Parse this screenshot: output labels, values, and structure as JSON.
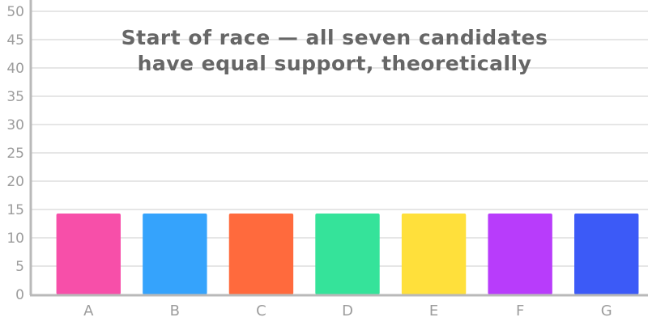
{
  "chart_data": {
    "type": "bar",
    "title_lines": [
      "Start of race — all seven candidates",
      "have equal support, theoretically"
    ],
    "categories": [
      "A",
      "B",
      "C",
      "D",
      "E",
      "F",
      "G"
    ],
    "values": [
      14.29,
      14.29,
      14.29,
      14.29,
      14.29,
      14.29,
      14.29
    ],
    "colors": [
      "#f74fa9",
      "#35a3fc",
      "#ff6a3d",
      "#35e39a",
      "#ffe03b",
      "#b83cfb",
      "#3c5af7"
    ],
    "ylim": [
      0,
      52
    ],
    "yticks": [
      0,
      5,
      10,
      15,
      20,
      25,
      30,
      35,
      40,
      45,
      50
    ],
    "xlabel": "",
    "ylabel": "",
    "grid": true,
    "legend": "none"
  }
}
